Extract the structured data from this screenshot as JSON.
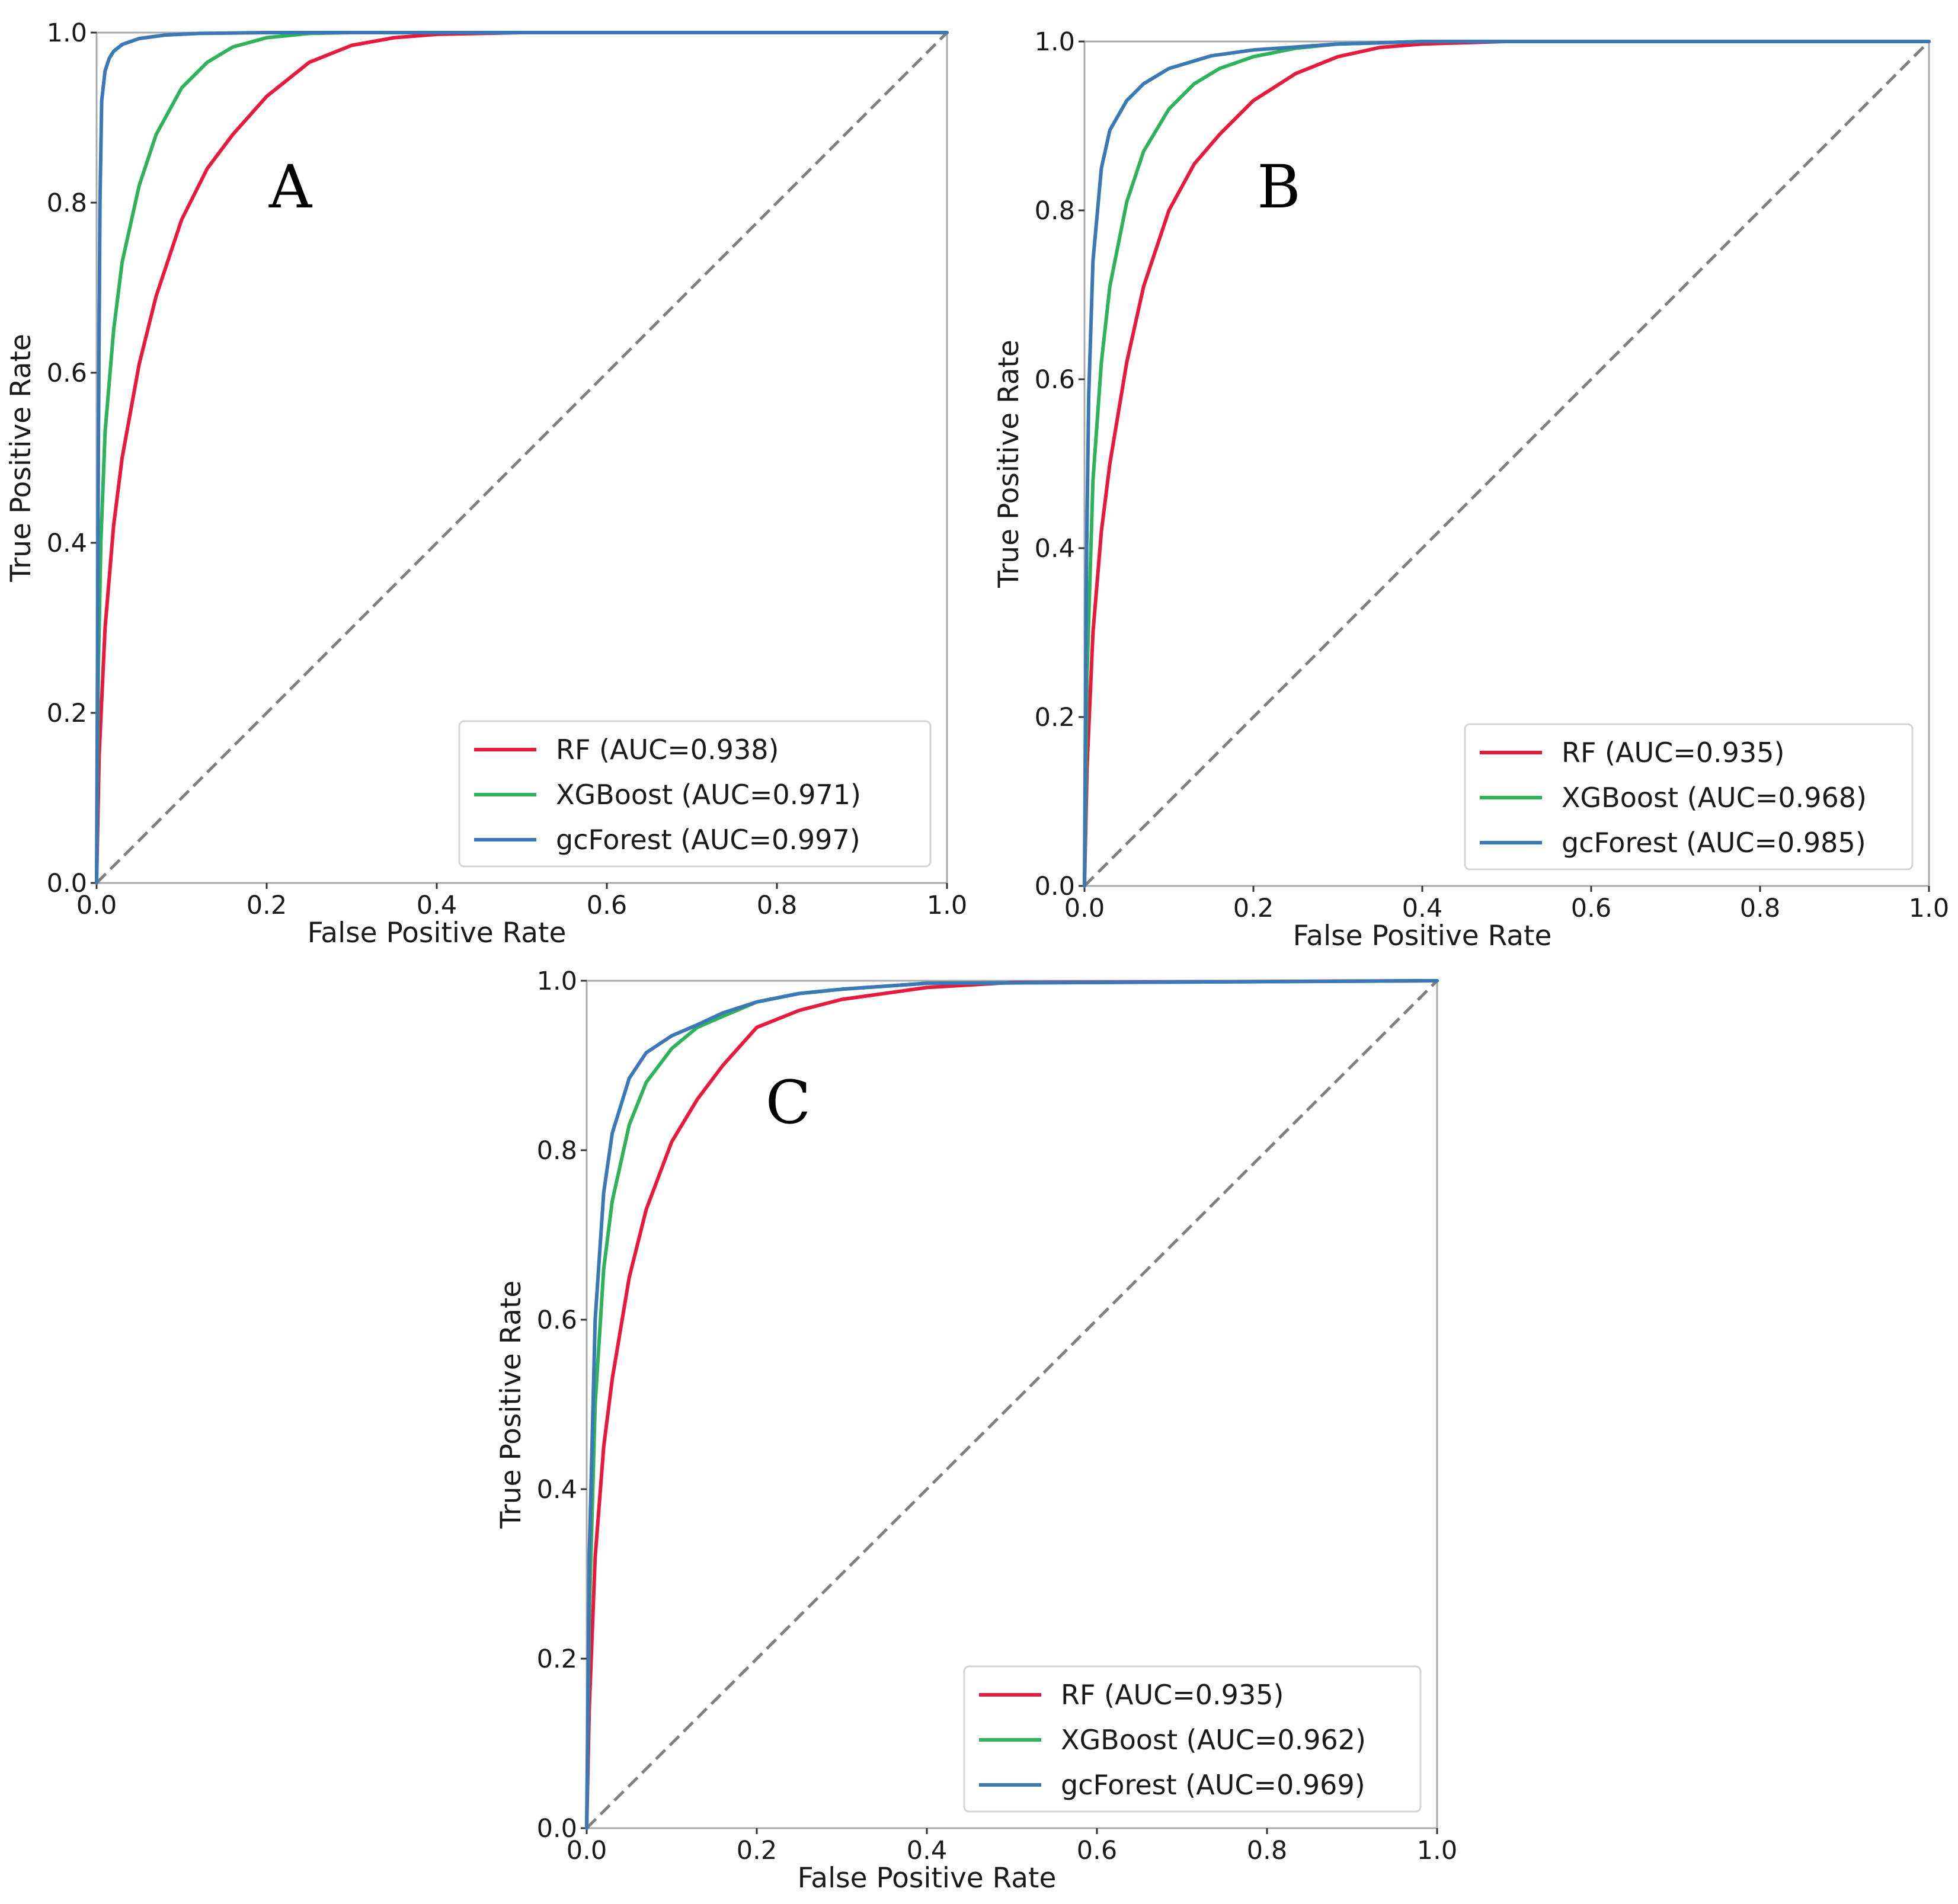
{
  "colors": {
    "RF": "#e8193c",
    "XGBoost": "#2eb35a",
    "gcForest": "#3a78b8",
    "diagonal": "#808080"
  },
  "chart_data": [
    {
      "type": "line",
      "panel_label": "A",
      "xlabel": "False Positive Rate",
      "ylabel": "True Positive Rate",
      "xlim": [
        0.0,
        1.0
      ],
      "ylim": [
        0.0,
        1.0
      ],
      "xticks": [
        "0.0",
        "0.2",
        "0.4",
        "0.6",
        "0.8",
        "1.0"
      ],
      "yticks": [
        "0.0",
        "0.2",
        "0.4",
        "0.6",
        "0.8",
        "1.0"
      ],
      "legend_location": "lower-right",
      "series": [
        {
          "name": "RF",
          "label": "RF (AUC=0.938)",
          "auc": 0.938,
          "x": [
            0,
            0.003,
            0.01,
            0.02,
            0.03,
            0.05,
            0.07,
            0.1,
            0.13,
            0.16,
            0.2,
            0.25,
            0.3,
            0.35,
            0.4,
            0.5,
            1.0
          ],
          "y": [
            0,
            0.15,
            0.3,
            0.42,
            0.5,
            0.61,
            0.69,
            0.78,
            0.84,
            0.88,
            0.925,
            0.965,
            0.985,
            0.994,
            0.998,
            1.0,
            1.0
          ]
        },
        {
          "name": "XGBoost",
          "label": "XGBoost (AUC=0.971)",
          "auc": 0.971,
          "x": [
            0,
            0.002,
            0.005,
            0.01,
            0.02,
            0.03,
            0.05,
            0.07,
            0.1,
            0.13,
            0.16,
            0.2,
            0.25,
            0.3,
            1.0
          ],
          "y": [
            0,
            0.25,
            0.4,
            0.53,
            0.65,
            0.73,
            0.82,
            0.88,
            0.935,
            0.965,
            0.983,
            0.994,
            0.999,
            1.0,
            1.0
          ]
        },
        {
          "name": "gcForest",
          "label": "gcForest (AUC=0.997)",
          "auc": 0.997,
          "x": [
            0,
            0.002,
            0.004,
            0.006,
            0.01,
            0.015,
            0.02,
            0.03,
            0.05,
            0.08,
            0.12,
            0.2,
            1.0
          ],
          "y": [
            0,
            0.5,
            0.8,
            0.92,
            0.955,
            0.97,
            0.978,
            0.986,
            0.993,
            0.997,
            0.999,
            1.0,
            1.0
          ]
        }
      ]
    },
    {
      "type": "line",
      "panel_label": "B",
      "xlabel": "False Positive Rate",
      "ylabel": "True Positive Rate",
      "xlim": [
        0.0,
        1.0
      ],
      "ylim": [
        0.0,
        1.0
      ],
      "xticks": [
        "0.0",
        "0.2",
        "0.4",
        "0.6",
        "0.8",
        "1.0"
      ],
      "yticks": [
        "0.0",
        "0.2",
        "0.4",
        "0.6",
        "0.8",
        "1.0"
      ],
      "legend_location": "lower-right",
      "series": [
        {
          "name": "RF",
          "label": "RF (AUC=0.935)",
          "auc": 0.935,
          "x": [
            0,
            0.003,
            0.01,
            0.02,
            0.03,
            0.05,
            0.07,
            0.1,
            0.13,
            0.16,
            0.2,
            0.25,
            0.3,
            0.35,
            0.4,
            0.5,
            1.0
          ],
          "y": [
            0,
            0.14,
            0.3,
            0.42,
            0.5,
            0.62,
            0.71,
            0.8,
            0.855,
            0.89,
            0.93,
            0.962,
            0.982,
            0.993,
            0.997,
            1.0,
            1.0
          ]
        },
        {
          "name": "XGBoost",
          "label": "XGBoost (AUC=0.968)",
          "auc": 0.968,
          "x": [
            0,
            0.003,
            0.01,
            0.02,
            0.03,
            0.05,
            0.07,
            0.1,
            0.13,
            0.16,
            0.2,
            0.25,
            0.3,
            0.4,
            1.0
          ],
          "y": [
            0,
            0.25,
            0.48,
            0.62,
            0.71,
            0.81,
            0.87,
            0.92,
            0.95,
            0.968,
            0.982,
            0.992,
            0.997,
            1.0,
            1.0
          ]
        },
        {
          "name": "gcForest",
          "label": "gcForest (AUC=0.985)",
          "auc": 0.985,
          "x": [
            0,
            0.002,
            0.005,
            0.01,
            0.02,
            0.03,
            0.05,
            0.07,
            0.1,
            0.15,
            0.2,
            0.3,
            0.4,
            1.0
          ],
          "y": [
            0,
            0.35,
            0.58,
            0.74,
            0.85,
            0.895,
            0.93,
            0.95,
            0.968,
            0.983,
            0.99,
            0.997,
            1.0,
            1.0
          ]
        }
      ]
    },
    {
      "type": "line",
      "panel_label": "C",
      "xlabel": "False Positive Rate",
      "ylabel": "True Positive Rate",
      "xlim": [
        0.0,
        1.0
      ],
      "ylim": [
        0.0,
        1.0
      ],
      "xticks": [
        "0.0",
        "0.2",
        "0.4",
        "0.6",
        "0.8",
        "1.0"
      ],
      "yticks": [
        "0.0",
        "0.2",
        "0.4",
        "0.6",
        "0.8",
        "1.0"
      ],
      "legend_location": "lower-right",
      "series": [
        {
          "name": "RF",
          "label": "RF (AUC=0.935)",
          "auc": 0.935,
          "x": [
            0,
            0.003,
            0.01,
            0.02,
            0.03,
            0.05,
            0.07,
            0.1,
            0.13,
            0.16,
            0.2,
            0.25,
            0.3,
            0.4,
            0.5,
            1.0
          ],
          "y": [
            0,
            0.14,
            0.32,
            0.45,
            0.53,
            0.65,
            0.73,
            0.81,
            0.86,
            0.9,
            0.945,
            0.965,
            0.978,
            0.992,
            0.998,
            1.0
          ]
        },
        {
          "name": "XGBoost",
          "label": "XGBoost (AUC=0.962)",
          "auc": 0.962,
          "x": [
            0,
            0.003,
            0.01,
            0.02,
            0.03,
            0.05,
            0.07,
            0.1,
            0.13,
            0.16,
            0.2,
            0.25,
            0.3,
            0.4,
            1.0
          ],
          "y": [
            0,
            0.25,
            0.5,
            0.66,
            0.74,
            0.83,
            0.88,
            0.92,
            0.945,
            0.958,
            0.975,
            0.985,
            0.99,
            0.997,
            1.0
          ]
        },
        {
          "name": "gcForest",
          "label": "gcForest (AUC=0.969)",
          "auc": 0.969,
          "x": [
            0,
            0.003,
            0.01,
            0.02,
            0.03,
            0.05,
            0.07,
            0.1,
            0.13,
            0.16,
            0.2,
            0.25,
            0.3,
            0.4,
            1.0
          ],
          "y": [
            0,
            0.32,
            0.6,
            0.75,
            0.82,
            0.885,
            0.915,
            0.935,
            0.948,
            0.962,
            0.975,
            0.985,
            0.99,
            0.997,
            1.0
          ]
        }
      ]
    }
  ]
}
